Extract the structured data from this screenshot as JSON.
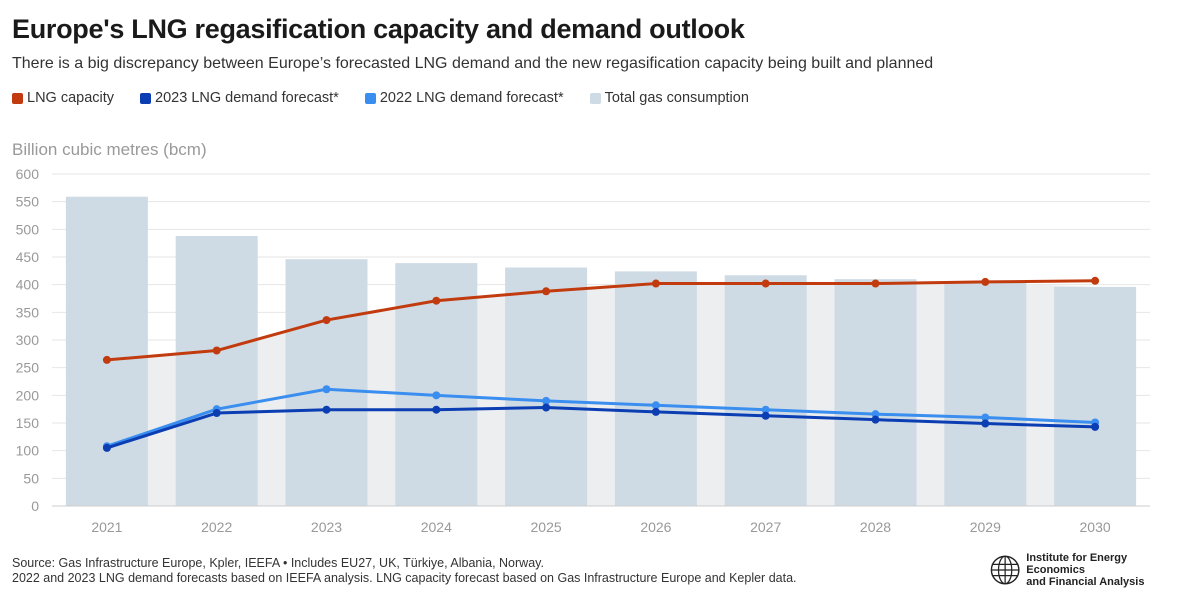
{
  "chart_data": {
    "type": "bar",
    "title": "Europe's LNG regasification capacity and demand outlook",
    "subtitle": "There is a big discrepancy between Europe’s forecasted LNG demand and the new regasification capacity being built and planned",
    "ylabel": "Billion cubic metres (bcm)",
    "ylim": [
      0,
      600
    ],
    "yticks": [
      0,
      50,
      100,
      150,
      200,
      250,
      300,
      350,
      400,
      450,
      500,
      550,
      600
    ],
    "categories": [
      "2021",
      "2022",
      "2023",
      "2024",
      "2025",
      "2026",
      "2027",
      "2028",
      "2029",
      "2030"
    ],
    "grid": true,
    "legend_position": "top-left",
    "series": [
      {
        "name": "LNG capacity",
        "kind": "line",
        "color": "#c23b0f",
        "values": [
          264,
          281,
          336,
          371,
          388,
          402,
          402,
          402,
          405,
          407
        ]
      },
      {
        "name": "2023 LNG demand forecast*",
        "kind": "line",
        "color": "#0b3db3",
        "values": [
          105,
          168,
          174,
          174,
          178,
          170,
          163,
          156,
          149,
          143
        ]
      },
      {
        "name": "2022 LNG demand forecast*",
        "kind": "line",
        "color": "#3a8ef0",
        "values": [
          108,
          175,
          211,
          200,
          190,
          182,
          174,
          166,
          160,
          151
        ]
      },
      {
        "name": "Total gas consumption",
        "kind": "bar",
        "color": "#cfdbe4",
        "values": [
          559,
          488,
          446,
          439,
          431,
          424,
          417,
          410,
          403,
          396
        ]
      }
    ]
  },
  "footer": {
    "line1": "Source: Gas Infrastructure Europe, Kpler, IEEFA • Includes EU27, UK, Türkiye, Albania, Norway.",
    "line2": "2022 and 2023 LNG demand forecasts based on IEEFA analysis. LNG capacity forecast based on Gas Infrastructure Europe and Kepler data."
  },
  "logo": {
    "line1": "Institute for Energy Economics",
    "line2": "and Financial Analysis"
  }
}
